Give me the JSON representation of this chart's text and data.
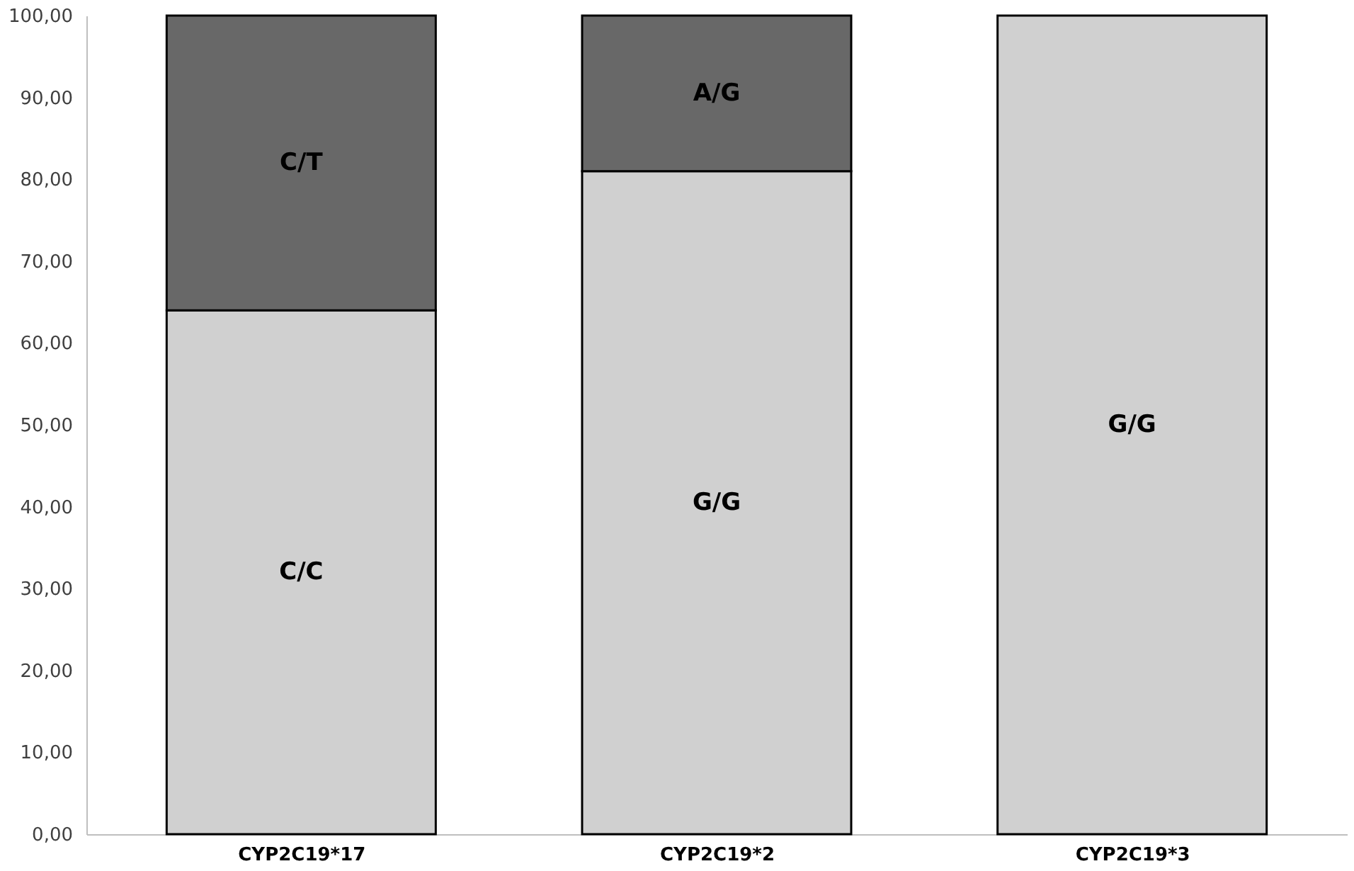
{
  "chart_data": {
    "type": "bar",
    "stacked": true,
    "categories": [
      "CYP2C19*17",
      "CYP2C19*2",
      "CYP2C19*3"
    ],
    "series": [
      {
        "color": "#d0d0d0",
        "values": [
          64,
          81,
          100
        ],
        "value_labels": [
          "C/C",
          "G/G",
          "G/G"
        ]
      },
      {
        "color": "#686868",
        "values": [
          36,
          19,
          null
        ],
        "value_labels": [
          "C/T",
          "A/G",
          null
        ]
      }
    ],
    "ylim": [
      0,
      100
    ],
    "yticks": [
      {
        "value": 0,
        "label": "0,00"
      },
      {
        "value": 10,
        "label": "10,00"
      },
      {
        "value": 20,
        "label": "20,00"
      },
      {
        "value": 30,
        "label": "30,00"
      },
      {
        "value": 40,
        "label": "40,00"
      },
      {
        "value": 50,
        "label": "50,00"
      },
      {
        "value": 60,
        "label": "60,00"
      },
      {
        "value": 70,
        "label": "70,00"
      },
      {
        "value": 80,
        "label": "80,00"
      },
      {
        "value": 90,
        "label": "90,00"
      },
      {
        "value": 100,
        "label": "100,00"
      }
    ],
    "grid": false,
    "legend": false
  }
}
